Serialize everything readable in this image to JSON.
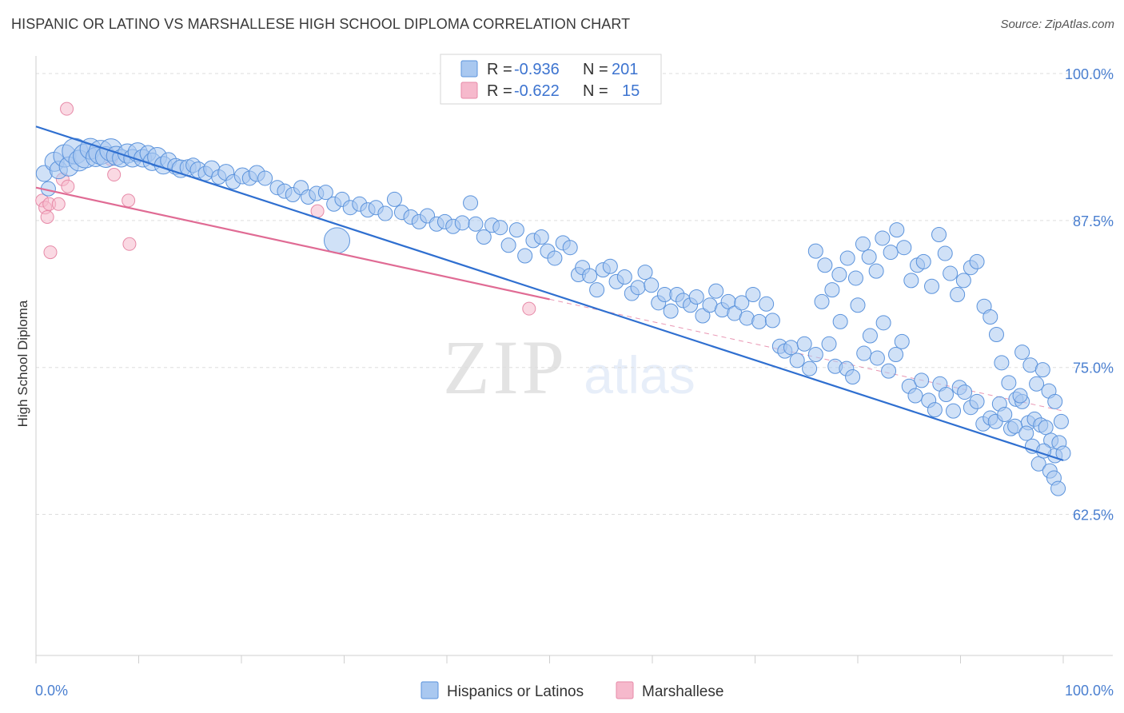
{
  "title": "HISPANIC OR LATINO VS MARSHALLESE HIGH SCHOOL DIPLOMA CORRELATION CHART",
  "source": "Source: ZipAtlas.com",
  "watermark": {
    "zip": "ZIP",
    "atlas": "atlas"
  },
  "colors": {
    "blue_fill": "#a9c8f0",
    "blue_stroke": "#5b93dc",
    "blue_line": "#2f6fd0",
    "pink_fill": "#f6b9cc",
    "pink_stroke": "#e78aa8",
    "pink_line": "#e06b94",
    "axis_text": "#4a7fd0",
    "grid": "#dddddd"
  },
  "legend": {
    "rows": [
      {
        "r_label": "R =",
        "r_value": "-0.936",
        "n_label": "N =",
        "n_value": "201",
        "color": "blue"
      },
      {
        "r_label": "R =",
        "r_value": "-0.622",
        "n_label": "N =",
        "n_value": "15",
        "color": "pink"
      }
    ]
  },
  "bottom_legend": [
    {
      "label": "Hispanics or Latinos",
      "color": "blue"
    },
    {
      "label": "Marshallese",
      "color": "pink"
    }
  ],
  "chart_data": {
    "type": "scatter",
    "title": "HISPANIC OR LATINO VS MARSHALLESE HIGH SCHOOL DIPLOMA CORRELATION CHART",
    "xlabel": "",
    "ylabel": "High School Diploma",
    "xlim": [
      0,
      100
    ],
    "ylim": [
      50.5,
      101.5
    ],
    "x_tick_labels": [
      "0.0%",
      "100.0%"
    ],
    "y_ticks": [
      62.5,
      75.0,
      87.5,
      100.0
    ],
    "y_tick_labels": [
      "62.5%",
      "75.0%",
      "87.5%",
      "100.0%"
    ],
    "grid": true,
    "legend_position": "top-center",
    "series": [
      {
        "name": "Hispanics or Latinos",
        "color": "blue",
        "trend": {
          "x": [
            0,
            100
          ],
          "y": [
            95.5,
            67.1
          ]
        },
        "points": [
          [
            0.8,
            91.5,
            10
          ],
          [
            1.2,
            90.2,
            9
          ],
          [
            1.8,
            92.5,
            12
          ],
          [
            2.2,
            91.8,
            11
          ],
          [
            2.8,
            93.0,
            14
          ],
          [
            3.2,
            92.1,
            12
          ],
          [
            3.8,
            93.4,
            16
          ],
          [
            4.2,
            92.6,
            13
          ],
          [
            4.8,
            93.0,
            15
          ],
          [
            5.3,
            93.6,
            13
          ],
          [
            5.8,
            92.9,
            12
          ],
          [
            6.3,
            93.3,
            15
          ],
          [
            6.8,
            92.9,
            13
          ],
          [
            7.3,
            93.5,
            14
          ],
          [
            7.8,
            93.0,
            12
          ],
          [
            8.3,
            92.8,
            11
          ],
          [
            8.9,
            93.2,
            12
          ],
          [
            9.4,
            92.8,
            11
          ],
          [
            9.9,
            93.3,
            12
          ],
          [
            10.4,
            92.8,
            11
          ],
          [
            10.9,
            93.2,
            10
          ],
          [
            11.3,
            92.5,
            11
          ],
          [
            11.8,
            92.9,
            12
          ],
          [
            12.4,
            92.2,
            11
          ],
          [
            12.9,
            92.6,
            10
          ],
          [
            13.6,
            92.1,
            10
          ],
          [
            14.1,
            91.9,
            11
          ],
          [
            14.8,
            92.0,
            10
          ],
          [
            15.3,
            92.2,
            9
          ],
          [
            15.8,
            91.8,
            10
          ],
          [
            16.5,
            91.5,
            9
          ],
          [
            17.1,
            91.9,
            10
          ],
          [
            17.8,
            91.2,
            9
          ],
          [
            18.5,
            91.6,
            10
          ],
          [
            19.2,
            90.8,
            9
          ],
          [
            20.1,
            91.3,
            10
          ],
          [
            20.8,
            91.1,
            9
          ],
          [
            21.5,
            91.5,
            10
          ],
          [
            22.3,
            91.1,
            9
          ],
          [
            23.5,
            90.3,
            9
          ],
          [
            24.2,
            90.0,
            9
          ],
          [
            25.0,
            89.7,
            9
          ],
          [
            25.8,
            90.3,
            9
          ],
          [
            26.5,
            89.5,
            9
          ],
          [
            27.3,
            89.8,
            9
          ],
          [
            28.2,
            89.9,
            9
          ],
          [
            29.0,
            88.9,
            9
          ],
          [
            29.8,
            89.3,
            9
          ],
          [
            30.6,
            88.6,
            9
          ],
          [
            31.5,
            88.9,
            9
          ],
          [
            32.3,
            88.4,
            9
          ],
          [
            33.1,
            88.6,
            9
          ],
          [
            34.0,
            88.1,
            9
          ],
          [
            34.9,
            89.3,
            9
          ],
          [
            35.6,
            88.2,
            9
          ],
          [
            36.5,
            87.8,
            9
          ],
          [
            37.3,
            87.4,
            9
          ],
          [
            38.1,
            87.9,
            9
          ],
          [
            39.0,
            87.2,
            9
          ],
          [
            39.8,
            87.4,
            9
          ],
          [
            40.6,
            87.0,
            9
          ],
          [
            41.5,
            87.3,
            9
          ],
          [
            42.3,
            89.0,
            9
          ],
          [
            42.8,
            87.2,
            9
          ],
          [
            43.6,
            86.1,
            9
          ],
          [
            44.4,
            87.1,
            9
          ],
          [
            45.2,
            86.9,
            9
          ],
          [
            46.0,
            85.4,
            9
          ],
          [
            46.8,
            86.7,
            9
          ],
          [
            47.6,
            84.5,
            9
          ],
          [
            48.4,
            85.8,
            9
          ],
          [
            49.2,
            86.1,
            9
          ],
          [
            49.8,
            84.9,
            9
          ],
          [
            50.5,
            84.3,
            9
          ],
          [
            51.3,
            85.6,
            9
          ],
          [
            52.0,
            85.2,
            9
          ],
          [
            52.8,
            82.9,
            9
          ],
          [
            53.2,
            83.5,
            9
          ],
          [
            53.9,
            82.8,
            9
          ],
          [
            54.6,
            81.6,
            9
          ],
          [
            55.2,
            83.3,
            9
          ],
          [
            55.9,
            83.6,
            9
          ],
          [
            56.5,
            82.3,
            9
          ],
          [
            57.3,
            82.7,
            9
          ],
          [
            58.0,
            81.3,
            9
          ],
          [
            58.6,
            81.8,
            9
          ],
          [
            59.3,
            83.1,
            9
          ],
          [
            59.9,
            82.0,
            9
          ],
          [
            60.6,
            80.5,
            9
          ],
          [
            61.2,
            81.2,
            9
          ],
          [
            61.8,
            79.8,
            9
          ],
          [
            62.4,
            81.2,
            9
          ],
          [
            63.0,
            80.7,
            9
          ],
          [
            63.7,
            80.3,
            9
          ],
          [
            64.3,
            81.0,
            9
          ],
          [
            64.9,
            79.4,
            9
          ],
          [
            65.6,
            80.3,
            9
          ],
          [
            66.2,
            81.5,
            9
          ],
          [
            66.8,
            79.9,
            9
          ],
          [
            67.4,
            80.6,
            9
          ],
          [
            68.0,
            79.6,
            9
          ],
          [
            68.7,
            80.5,
            9
          ],
          [
            69.2,
            79.2,
            9
          ],
          [
            69.8,
            81.2,
            9
          ],
          [
            70.4,
            78.9,
            9
          ],
          [
            71.1,
            80.4,
            9
          ],
          [
            71.7,
            79.0,
            9
          ],
          [
            72.4,
            76.8,
            9
          ],
          [
            72.9,
            76.4,
            9
          ],
          [
            73.5,
            76.7,
            9
          ],
          [
            74.1,
            75.6,
            9
          ],
          [
            74.8,
            77.0,
            9
          ],
          [
            75.3,
            74.9,
            9
          ],
          [
            75.9,
            76.1,
            9
          ],
          [
            76.5,
            80.6,
            9
          ],
          [
            77.2,
            77.0,
            9
          ],
          [
            77.8,
            75.1,
            9
          ],
          [
            78.3,
            78.9,
            9
          ],
          [
            78.9,
            74.9,
            9
          ],
          [
            79.5,
            74.2,
            9
          ],
          [
            80.0,
            80.3,
            9
          ],
          [
            80.6,
            76.2,
            9
          ],
          [
            81.2,
            77.7,
            9
          ],
          [
            81.9,
            75.8,
            9
          ],
          [
            82.5,
            78.8,
            9
          ],
          [
            83.0,
            74.7,
            9
          ],
          [
            83.7,
            76.1,
            9
          ],
          [
            84.3,
            77.2,
            9
          ],
          [
            85.0,
            73.4,
            9
          ],
          [
            85.6,
            72.6,
            9
          ],
          [
            86.2,
            73.9,
            9
          ],
          [
            86.9,
            72.2,
            9
          ],
          [
            87.5,
            71.4,
            9
          ],
          [
            88.0,
            73.6,
            9
          ],
          [
            88.6,
            72.7,
            9
          ],
          [
            89.3,
            71.3,
            9
          ],
          [
            89.9,
            73.3,
            9
          ],
          [
            90.4,
            72.9,
            9
          ],
          [
            91.0,
            71.6,
            9
          ],
          [
            91.6,
            72.1,
            9
          ],
          [
            92.2,
            70.2,
            9
          ],
          [
            92.9,
            70.7,
            9
          ],
          [
            93.4,
            70.4,
            9
          ],
          [
            93.8,
            71.9,
            9
          ],
          [
            94.3,
            71.0,
            9
          ],
          [
            94.9,
            69.8,
            9
          ],
          [
            95.4,
            72.3,
            9
          ],
          [
            96.0,
            72.1,
            9
          ],
          [
            96.6,
            70.3,
            9
          ],
          [
            97.2,
            70.6,
            9
          ],
          [
            97.8,
            70.1,
            9
          ],
          [
            98.3,
            69.9,
            9
          ],
          [
            98.8,
            68.8,
            9
          ],
          [
            99.2,
            67.5,
            9
          ],
          [
            99.6,
            68.6,
            9
          ],
          [
            100.0,
            67.7,
            9
          ],
          [
            75.9,
            84.9,
            9
          ],
          [
            76.8,
            83.7,
            9
          ],
          [
            77.5,
            81.6,
            9
          ],
          [
            78.2,
            82.9,
            9
          ],
          [
            79.0,
            84.3,
            9
          ],
          [
            79.8,
            82.6,
            9
          ],
          [
            80.5,
            85.5,
            9
          ],
          [
            81.1,
            84.4,
            9
          ],
          [
            81.8,
            83.2,
            9
          ],
          [
            82.4,
            86.0,
            9
          ],
          [
            83.2,
            84.8,
            9
          ],
          [
            83.8,
            86.7,
            9
          ],
          [
            84.5,
            85.2,
            9
          ],
          [
            85.2,
            82.4,
            9
          ],
          [
            85.8,
            83.7,
            9
          ],
          [
            86.4,
            84.0,
            9
          ],
          [
            87.2,
            81.9,
            9
          ],
          [
            87.9,
            86.3,
            9
          ],
          [
            88.5,
            84.7,
            9
          ],
          [
            89.0,
            83.0,
            9
          ],
          [
            89.7,
            81.2,
            9
          ],
          [
            90.3,
            82.4,
            9
          ],
          [
            91.0,
            83.5,
            9
          ],
          [
            91.6,
            84.0,
            9
          ],
          [
            92.3,
            80.2,
            9
          ],
          [
            92.9,
            79.3,
            9
          ],
          [
            93.5,
            77.8,
            9
          ],
          [
            94.0,
            75.4,
            9
          ],
          [
            94.7,
            73.7,
            9
          ],
          [
            95.3,
            70.0,
            9
          ],
          [
            95.8,
            72.6,
            9
          ],
          [
            96.4,
            69.4,
            9
          ],
          [
            97.0,
            68.3,
            9
          ],
          [
            97.6,
            66.8,
            9
          ],
          [
            98.1,
            67.9,
            9
          ],
          [
            98.7,
            66.2,
            9
          ],
          [
            99.1,
            65.6,
            9
          ],
          [
            99.5,
            64.7,
            9
          ],
          [
            96.0,
            76.3,
            9
          ],
          [
            96.8,
            75.2,
            9
          ],
          [
            97.4,
            73.6,
            9
          ],
          [
            98.0,
            74.8,
            9
          ],
          [
            98.6,
            73.0,
            9
          ],
          [
            99.2,
            72.1,
            9
          ],
          [
            99.8,
            70.4,
            9
          ]
        ]
      },
      {
        "name": "Marshallese",
        "color": "pink",
        "trend": {
          "x": [
            0,
            50
          ],
          "y": [
            90.3,
            80.8
          ]
        },
        "points": [
          [
            0.6,
            89.2,
            8
          ],
          [
            0.9,
            88.6,
            8
          ],
          [
            1.1,
            87.8,
            8
          ],
          [
            1.3,
            88.9,
            8
          ],
          [
            1.4,
            84.8,
            8
          ],
          [
            2.2,
            88.9,
            8
          ],
          [
            2.6,
            91.0,
            8
          ],
          [
            3.1,
            90.4,
            8
          ],
          [
            3.0,
            97.0,
            8
          ],
          [
            7.3,
            92.7,
            8
          ],
          [
            7.6,
            91.4,
            8
          ],
          [
            9.0,
            89.2,
            8
          ],
          [
            9.1,
            85.5,
            8
          ],
          [
            27.4,
            88.3,
            8
          ],
          [
            48.0,
            80.0,
            8
          ]
        ]
      }
    ]
  }
}
